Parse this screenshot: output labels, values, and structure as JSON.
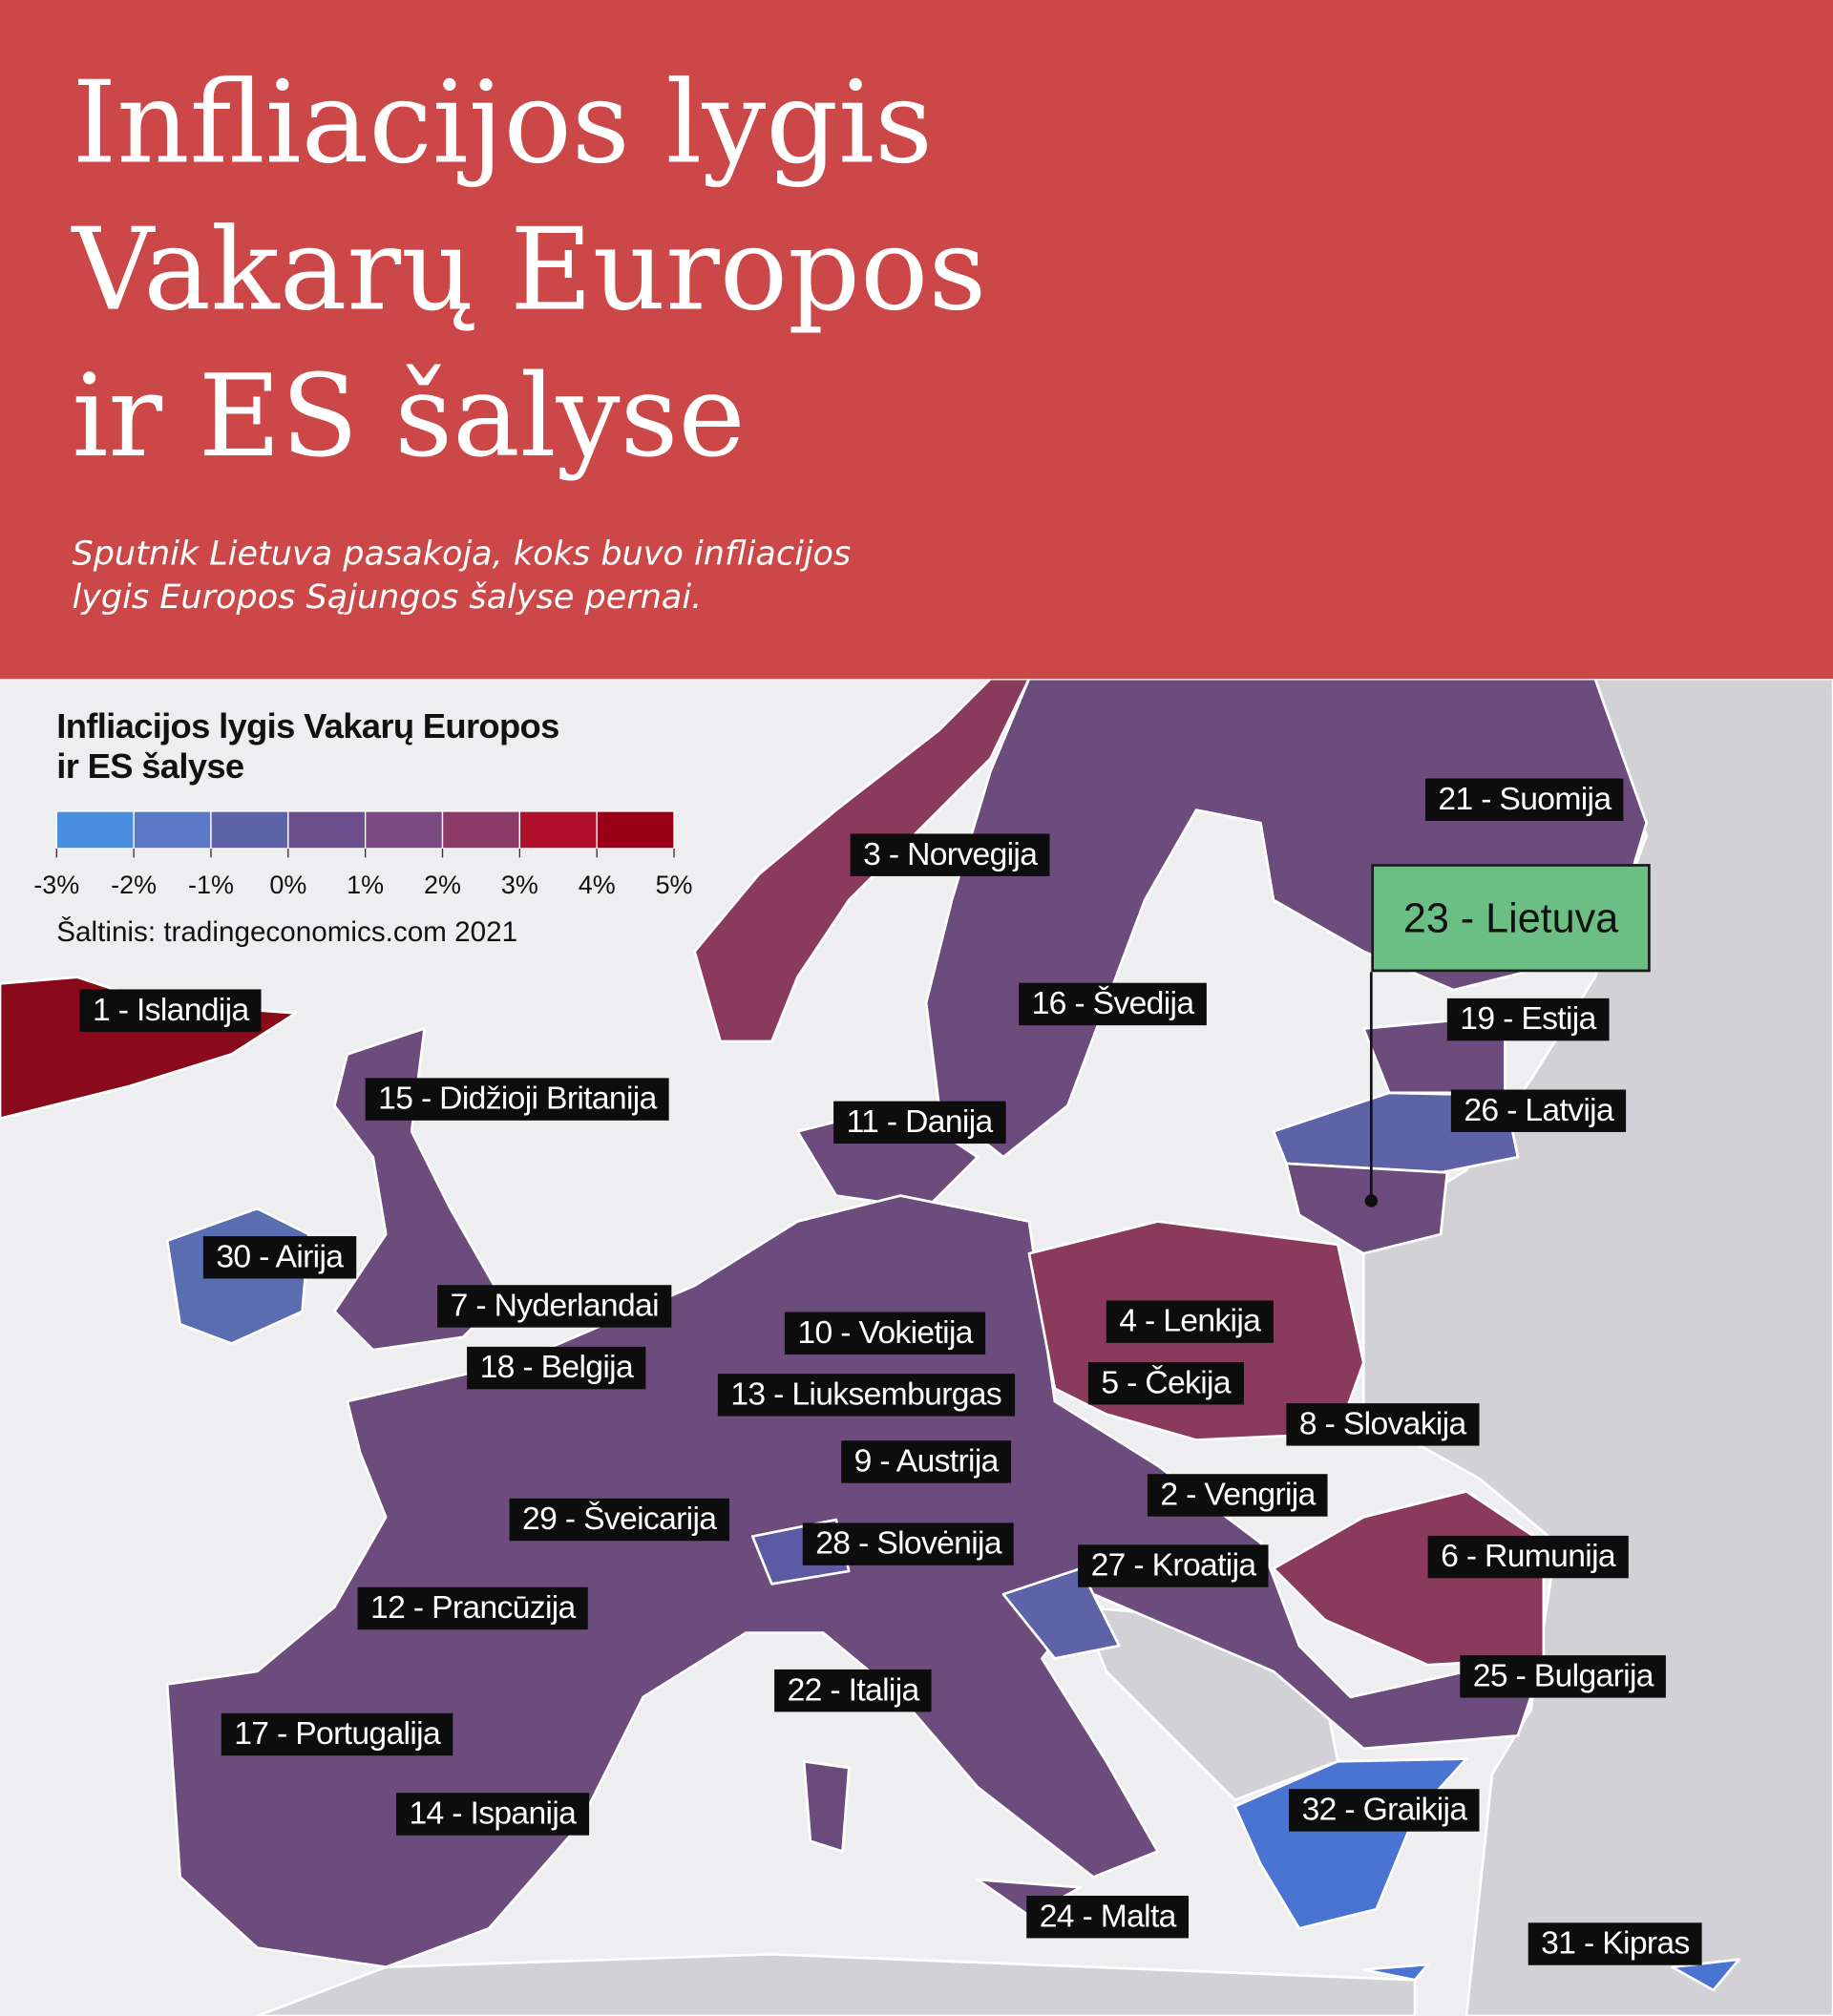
{
  "header": {
    "title_lines": [
      "Infliacijos lygis",
      "Vakarų Europos",
      "ir ES šalyse"
    ],
    "subtitle_lines": [
      "Sputnik Lietuva pasakoja, koks buvo infliacijos",
      "lygis Europos Sąjungos šalyse pernai."
    ]
  },
  "legend": {
    "title_lines": [
      "Infliacijos lygis Vakarų Europos",
      "ir ES šalyse"
    ],
    "colors": [
      "#4a8ee0",
      "#5b78c6",
      "#5e62a6",
      "#6a4f8c",
      "#7c4a82",
      "#8c3b66",
      "#b0102c",
      "#9a0018"
    ],
    "scale_labels": [
      "-3%",
      "-2%",
      "-1%",
      "0%",
      "1%",
      "2%",
      "3%",
      "4%",
      "5%"
    ],
    "source": "Šaltinis: tradingeconomics.com 2021"
  },
  "highlight": "23 - Lietuva",
  "labels": [
    "1 - Islandija",
    "3 - Norvegija",
    "21 - Suomija",
    "16 - Švedija",
    "19 - Estija",
    "15 - Didžioji Britanija",
    "11 - Danija",
    "26 - Latvija",
    "30 - Airija",
    "7 - Nyderlandai",
    "10 - Vokietija",
    "4 - Lenkija",
    "18 - Belgija",
    "13 - Liuksemburgas",
    "5 - Čekija",
    "8 - Slovakija",
    "9 - Austrija",
    "2 - Vengrija",
    "29 - Šveicarija",
    "28 - Slovėnija",
    "27 - Kroatija",
    "6 - Rumunija",
    "12 - Prancūzija",
    "22 - Italija",
    "25 - Bulgarija",
    "17 - Portugalija",
    "14 - Ispanija",
    "32 - Graikija",
    "24 - Malta",
    "31 - Kipras"
  ]
}
